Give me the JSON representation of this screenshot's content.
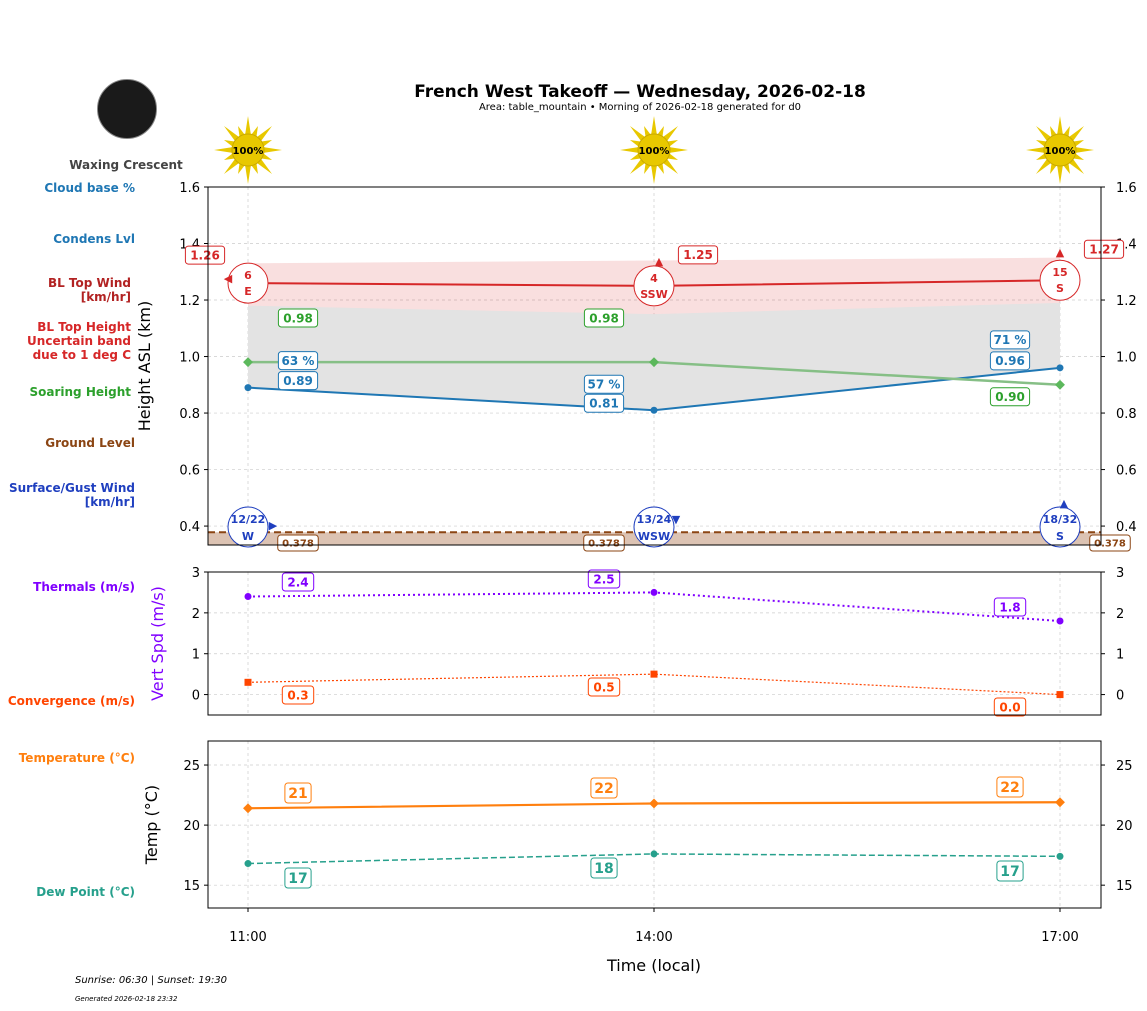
{
  "title": "French West Takeoff — Wednesday, 2026-02-18",
  "subtitle": "Area: table_mountain • Morning of 2026-02-18 generated for d0",
  "moon": {
    "phase": "Waxing Crescent",
    "icon": "moon-icon"
  },
  "footer": {
    "sun": "Sunrise: 06:30 | Sunset: 19:30",
    "generated": "Generated 2026-02-18 23:32"
  },
  "colors": {
    "bl": "#d62728",
    "soar": "#2ca02c",
    "cloud": "#1f77b4",
    "ground": "#8b4513",
    "surface": "#1f3fbf",
    "thermal": "#8000ff",
    "conv": "#ff4500",
    "temp": "#ff7f0e",
    "dew": "#26a08c"
  },
  "side_labels": {
    "cloud_base": "Cloud base %",
    "condens": "Condens Lvl",
    "bl_wind": "BL Top Wind\n[km/hr]",
    "bl_height": "BL Top Height\nUncertain band\ndue to 1 deg C",
    "soaring": "Soaring Height",
    "ground": "Ground Level",
    "surface_wind": "Surface/Gust Wind\n[km/hr]",
    "thermals": "Thermals (m/s)",
    "convergence": "Convergence (m/s)",
    "temperature": "Temperature (°C)",
    "dew": "Dew Point (°C)"
  },
  "chart_data": [
    {
      "type": "line",
      "ylabel": "Height ASL (km)",
      "ylim": [
        0.333,
        1.6
      ],
      "yticks": [
        "0.4",
        "0.6",
        "0.8",
        "1.0",
        "1.2",
        "1.4",
        "1.6"
      ],
      "x": [
        "11:00",
        "14:00",
        "17:00"
      ],
      "sun_percent": [
        "100%",
        "100%",
        "100%"
      ],
      "series": [
        {
          "key": "bl_top",
          "values": [
            1.26,
            1.25,
            1.27
          ],
          "labels": [
            "1.26",
            "1.25",
            "1.27"
          ],
          "band_high": [
            1.33,
            1.34,
            1.35
          ],
          "band_low": [
            1.18,
            1.15,
            1.19
          ]
        },
        {
          "key": "soaring",
          "values": [
            0.98,
            0.98,
            0.9
          ],
          "labels": [
            "0.98",
            "0.98",
            "0.90"
          ]
        },
        {
          "key": "condens",
          "values": [
            0.89,
            0.81,
            0.96
          ],
          "labels": [
            "0.89",
            "0.81",
            "0.96"
          ],
          "cloud_pct": [
            "63 %",
            "57 %",
            "71 %"
          ]
        },
        {
          "key": "ground",
          "values": [
            0.378,
            0.378,
            0.378
          ],
          "labels": [
            "0.378",
            "0.378",
            "0.378"
          ]
        }
      ],
      "bl_wind": [
        {
          "speed": "6",
          "dir": "E"
        },
        {
          "speed": "4",
          "dir": "SSW"
        },
        {
          "speed": "15",
          "dir": "S"
        }
      ],
      "surface_wind": [
        {
          "speed": "12/22",
          "dir": "W"
        },
        {
          "speed": "13/24",
          "dir": "WSW"
        },
        {
          "speed": "18/32",
          "dir": "S"
        }
      ]
    },
    {
      "type": "line",
      "ylabel": "Vert Spd (m/s)",
      "ylim": [
        -0.5,
        3
      ],
      "yticks": [
        "0",
        "1",
        "2",
        "3"
      ],
      "x": [
        "11:00",
        "14:00",
        "17:00"
      ],
      "series": [
        {
          "key": "thermals",
          "values": [
            2.4,
            2.5,
            1.8
          ],
          "labels": [
            "2.4",
            "2.5",
            "1.8"
          ]
        },
        {
          "key": "convergence",
          "values": [
            0.3,
            0.5,
            0.0
          ],
          "labels": [
            "0.3",
            "0.5",
            "0.0"
          ]
        }
      ]
    },
    {
      "type": "line",
      "ylabel": "Temp (°C)",
      "xlabel": "Time (local)",
      "ylim": [
        13.1,
        27
      ],
      "yticks": [
        "15",
        "20",
        "25"
      ],
      "x": [
        "11:00",
        "14:00",
        "17:00"
      ],
      "series": [
        {
          "key": "temperature",
          "values": [
            21.4,
            21.8,
            21.9
          ],
          "labels": [
            "21",
            "22",
            "22"
          ]
        },
        {
          "key": "dew_point",
          "values": [
            16.8,
            17.6,
            17.4
          ],
          "labels": [
            "17",
            "18",
            "17"
          ]
        }
      ]
    }
  ]
}
